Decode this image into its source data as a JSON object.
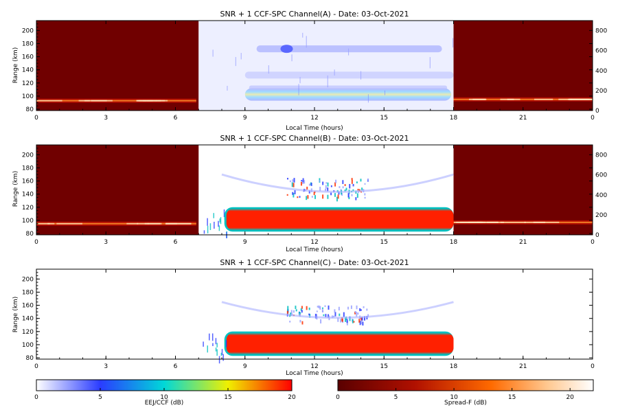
{
  "chart_data": [
    {
      "type": "heatmap",
      "title": "SNR + 1 CCF-SPC Channel(A) - Date: 03-Oct-2021",
      "xlabel": "Local Time (hours)",
      "ylabel": "Range (km)",
      "x_ticks": [
        "0",
        "3",
        "6",
        "9",
        "12",
        "15",
        "18",
        "21",
        "0"
      ],
      "y_ticks": [
        "80",
        "100",
        "120",
        "140",
        "160",
        "180",
        "200"
      ],
      "right_ticks": [
        "0",
        "200",
        "400",
        "600",
        "800"
      ],
      "xlim": [
        0,
        24
      ],
      "ylim": [
        78,
        215
      ],
      "right_ylim": [
        0,
        900
      ],
      "colors": {
        "night_bg": "#700000",
        "day_bg": "#ffffff"
      },
      "regions": {
        "night1": [
          0,
          7
        ],
        "day": [
          7,
          18
        ],
        "night2": [
          18,
          24
        ]
      },
      "features": [
        {
          "kind": "night_band",
          "x": [
            0,
            6.9
          ],
          "y": 93,
          "db": 14
        },
        {
          "kind": "night_band",
          "x": [
            18,
            24
          ],
          "y": 95,
          "db": 16
        },
        {
          "kind": "eej_core",
          "x": [
            9,
            17.9
          ],
          "y": [
            93,
            112
          ],
          "db": 10
        },
        {
          "kind": "diffuse",
          "x": [
            7,
            18
          ],
          "y": [
            78,
            215
          ],
          "db": 1
        },
        {
          "kind": "upper_band",
          "x": [
            9.5,
            17.5
          ],
          "y": 172,
          "db": 3
        },
        {
          "kind": "upper_band",
          "x": [
            9,
            18
          ],
          "y": 132,
          "db": 1.5
        }
      ]
    },
    {
      "type": "heatmap",
      "title": "SNR + 1 CCF-SPC Channel(B) - Date: 03-Oct-2021",
      "xlabel": "Local Time (hours)",
      "ylabel": "Range (km)",
      "x_ticks": [
        "0",
        "3",
        "6",
        "9",
        "12",
        "15",
        "18",
        "21",
        "0"
      ],
      "y_ticks": [
        "80",
        "100",
        "120",
        "140",
        "160",
        "180",
        "200"
      ],
      "right_ticks": [
        "0",
        "200",
        "400",
        "600",
        "800"
      ],
      "xlim": [
        0,
        24
      ],
      "ylim": [
        78,
        215
      ],
      "right_ylim": [
        0,
        900
      ],
      "colors": {
        "night_bg": "#700000",
        "day_bg": "#ffffff"
      },
      "regions": {
        "night1": [
          0,
          7
        ],
        "day": [
          7,
          18
        ],
        "night2": [
          18,
          24
        ]
      },
      "features": [
        {
          "kind": "night_band",
          "x": [
            0,
            6.9
          ],
          "y": 95,
          "db": 14
        },
        {
          "kind": "night_band",
          "x": [
            18,
            24
          ],
          "y": 97,
          "db": 16
        },
        {
          "kind": "eej_saturated",
          "x": [
            8.2,
            18
          ],
          "y": [
            85,
            118
          ],
          "db": 20
        },
        {
          "kind": "patch",
          "x": [
            10.8,
            14.3
          ],
          "y": [
            135,
            165
          ],
          "db": 8
        },
        {
          "kind": "arc",
          "x": [
            8,
            18
          ],
          "y": [
            140,
            170
          ],
          "db": 1.5
        }
      ]
    },
    {
      "type": "heatmap",
      "title": "SNR + 1 CCF-SPC Channel(C) - Date: 03-Oct-2021",
      "xlabel": "Local Time (hours)",
      "ylabel": "Range (km)",
      "x_ticks": [
        "0",
        "3",
        "6",
        "9",
        "12",
        "15",
        "18",
        "21",
        "0"
      ],
      "y_ticks": [
        "80",
        "100",
        "120",
        "140",
        "160",
        "180",
        "200"
      ],
      "xlim": [
        0,
        24
      ],
      "ylim": [
        78,
        215
      ],
      "colors": {
        "night_bg": "#ffffff",
        "day_bg": "#ffffff"
      },
      "regions": {
        "day": [
          7,
          18
        ]
      },
      "features": [
        {
          "kind": "eej_saturated",
          "x": [
            8.2,
            18
          ],
          "y": [
            85,
            118
          ],
          "db": 20
        },
        {
          "kind": "patch",
          "x": [
            10.8,
            14.3
          ],
          "y": [
            135,
            160
          ],
          "db": 8
        },
        {
          "kind": "arc",
          "x": [
            8,
            18
          ],
          "y": [
            140,
            165
          ],
          "db": 1.5
        }
      ]
    }
  ],
  "colorbars": [
    {
      "label": "EEJ/CCF (dB)",
      "ticks": [
        "0",
        "5",
        "10",
        "15",
        "20"
      ],
      "range": [
        0,
        20
      ],
      "colors": [
        "#ffffff",
        "#2a3cff",
        "#00d8d8",
        "#f0f000",
        "#ff0000"
      ]
    },
    {
      "label": "Spread-F (dB)",
      "ticks": [
        "0",
        "5",
        "10",
        "15",
        "20"
      ],
      "range": [
        0,
        22
      ],
      "colors": [
        "#5a0000",
        "#b01000",
        "#ff6a00",
        "#ffc890",
        "#ffffff"
      ]
    }
  ]
}
